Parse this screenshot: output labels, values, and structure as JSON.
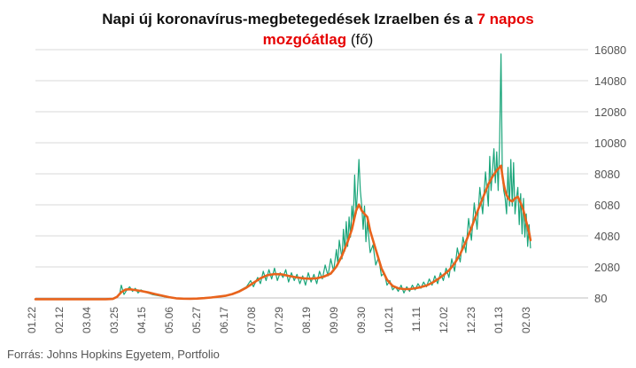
{
  "chart_data": {
    "type": "line",
    "title": {
      "part1": "Napi új koronavírus-megbetegedések Izraelben  és a ",
      "part2_red": "7 napos",
      "part3_red": "mozgóátlag",
      "part4": " (fő)"
    },
    "source": "Forrás: Johns Hopkins Egyetem, Portfolio",
    "y_ticks": [
      "80",
      "2080",
      "4080",
      "6080",
      "8080",
      "10080",
      "12080",
      "14080",
      "16080"
    ],
    "ylim": [
      80,
      16080
    ],
    "x_ticks": [
      "01.22",
      "02.12",
      "03.04",
      "03.25",
      "04.15",
      "05.06",
      "05.27",
      "06.17",
      "07.08",
      "07.29",
      "08.19",
      "09.09",
      "09.30",
      "10.21",
      "11.11",
      "12.02",
      "12.23",
      "01.13",
      "02.03"
    ],
    "x_range_days": [
      0,
      393
    ],
    "legend": "none",
    "grid": "horizontal",
    "series": [
      {
        "name": "Napi új megbetegedések",
        "color": "#1aa57a",
        "points": [
          [
            0,
            0
          ],
          [
            10,
            0
          ],
          [
            20,
            0
          ],
          [
            30,
            0
          ],
          [
            40,
            0
          ],
          [
            50,
            0
          ],
          [
            55,
            30
          ],
          [
            58,
            120
          ],
          [
            60,
            400
          ],
          [
            61,
            900
          ],
          [
            63,
            300
          ],
          [
            65,
            600
          ],
          [
            67,
            800
          ],
          [
            69,
            500
          ],
          [
            71,
            700
          ],
          [
            73,
            400
          ],
          [
            75,
            600
          ],
          [
            77,
            500
          ],
          [
            80,
            400
          ],
          [
            83,
            300
          ],
          [
            86,
            250
          ],
          [
            89,
            200
          ],
          [
            92,
            150
          ],
          [
            95,
            100
          ],
          [
            100,
            50
          ],
          [
            105,
            30
          ],
          [
            110,
            20
          ],
          [
            115,
            40
          ],
          [
            120,
            60
          ],
          [
            125,
            100
          ],
          [
            130,
            150
          ],
          [
            135,
            200
          ],
          [
            138,
            300
          ],
          [
            142,
            400
          ],
          [
            146,
            600
          ],
          [
            150,
            800
          ],
          [
            153,
            1200
          ],
          [
            155,
            800
          ],
          [
            158,
            1400
          ],
          [
            160,
            1000
          ],
          [
            162,
            1800
          ],
          [
            164,
            1200
          ],
          [
            166,
            1900
          ],
          [
            168,
            1300
          ],
          [
            170,
            2000
          ],
          [
            172,
            1200
          ],
          [
            174,
            1700
          ],
          [
            176,
            1400
          ],
          [
            178,
            1900
          ],
          [
            180,
            1100
          ],
          [
            182,
            1700
          ],
          [
            184,
            1200
          ],
          [
            186,
            1600
          ],
          [
            188,
            1000
          ],
          [
            190,
            1500
          ],
          [
            192,
            900
          ],
          [
            194,
            1700
          ],
          [
            196,
            1100
          ],
          [
            198,
            1600
          ],
          [
            200,
            1000
          ],
          [
            202,
            1800
          ],
          [
            204,
            1300
          ],
          [
            206,
            2200
          ],
          [
            208,
            1500
          ],
          [
            210,
            2600
          ],
          [
            212,
            1800
          ],
          [
            214,
            3200
          ],
          [
            215,
            2200
          ],
          [
            216,
            3800
          ],
          [
            218,
            2600
          ],
          [
            219,
            4500
          ],
          [
            220,
            3100
          ],
          [
            221,
            5000
          ],
          [
            222,
            3400
          ],
          [
            223,
            5300
          ],
          [
            224,
            4000
          ],
          [
            225,
            6000
          ],
          [
            226,
            5000
          ],
          [
            227,
            8000
          ],
          [
            228,
            5500
          ],
          [
            229,
            7000
          ],
          [
            230,
            9000
          ],
          [
            231,
            7000
          ],
          [
            232,
            6000
          ],
          [
            233,
            4500
          ],
          [
            234,
            6000
          ],
          [
            235,
            3700
          ],
          [
            236,
            5000
          ],
          [
            238,
            3000
          ],
          [
            240,
            3500
          ],
          [
            242,
            2200
          ],
          [
            244,
            2700
          ],
          [
            246,
            1500
          ],
          [
            248,
            1700
          ],
          [
            250,
            900
          ],
          [
            252,
            1200
          ],
          [
            254,
            600
          ],
          [
            256,
            800
          ],
          [
            258,
            500
          ],
          [
            260,
            900
          ],
          [
            262,
            400
          ],
          [
            264,
            800
          ],
          [
            266,
            500
          ],
          [
            268,
            900
          ],
          [
            270,
            600
          ],
          [
            272,
            1000
          ],
          [
            274,
            700
          ],
          [
            276,
            1100
          ],
          [
            278,
            800
          ],
          [
            280,
            1300
          ],
          [
            282,
            900
          ],
          [
            284,
            1500
          ],
          [
            286,
            1000
          ],
          [
            288,
            1700
          ],
          [
            290,
            1200
          ],
          [
            292,
            2000
          ],
          [
            294,
            1400
          ],
          [
            296,
            2600
          ],
          [
            298,
            1800
          ],
          [
            300,
            3300
          ],
          [
            302,
            2400
          ],
          [
            304,
            4000
          ],
          [
            306,
            3000
          ],
          [
            308,
            5200
          ],
          [
            310,
            3800
          ],
          [
            312,
            6200
          ],
          [
            314,
            4500
          ],
          [
            316,
            7200
          ],
          [
            318,
            5500
          ],
          [
            320,
            8200
          ],
          [
            322,
            6000
          ],
          [
            323,
            9200
          ],
          [
            324,
            7000
          ],
          [
            326,
            9700
          ],
          [
            327,
            7500
          ],
          [
            328,
            9500
          ],
          [
            329,
            7000
          ],
          [
            330,
            10000
          ],
          [
            331,
            15800
          ],
          [
            332,
            8000
          ],
          [
            333,
            7000
          ],
          [
            334,
            6500
          ],
          [
            335,
            5500
          ],
          [
            336,
            8500
          ],
          [
            337,
            6000
          ],
          [
            338,
            9000
          ],
          [
            339,
            6000
          ],
          [
            340,
            8800
          ],
          [
            341,
            5500
          ],
          [
            342,
            6500
          ],
          [
            343,
            7200
          ],
          [
            344,
            4800
          ],
          [
            345,
            6800
          ],
          [
            346,
            4200
          ],
          [
            347,
            6500
          ],
          [
            348,
            4000
          ],
          [
            349,
            5500
          ],
          [
            350,
            3400
          ],
          [
            351,
            4800
          ],
          [
            352,
            3300
          ]
        ]
      },
      {
        "name": "7 napos mozgóátlag",
        "color": "#e8631c",
        "points": [
          [
            0,
            0
          ],
          [
            50,
            0
          ],
          [
            55,
            20
          ],
          [
            58,
            150
          ],
          [
            61,
            450
          ],
          [
            64,
            620
          ],
          [
            67,
            640
          ],
          [
            70,
            600
          ],
          [
            75,
            530
          ],
          [
            80,
            440
          ],
          [
            85,
            330
          ],
          [
            90,
            230
          ],
          [
            95,
            130
          ],
          [
            100,
            60
          ],
          [
            105,
            35
          ],
          [
            110,
            30
          ],
          [
            115,
            40
          ],
          [
            120,
            70
          ],
          [
            125,
            110
          ],
          [
            130,
            160
          ],
          [
            135,
            220
          ],
          [
            140,
            330
          ],
          [
            145,
            500
          ],
          [
            150,
            750
          ],
          [
            155,
            1050
          ],
          [
            160,
            1350
          ],
          [
            165,
            1550
          ],
          [
            170,
            1620
          ],
          [
            175,
            1600
          ],
          [
            180,
            1500
          ],
          [
            185,
            1420
          ],
          [
            190,
            1350
          ],
          [
            195,
            1320
          ],
          [
            200,
            1350
          ],
          [
            205,
            1450
          ],
          [
            210,
            1650
          ],
          [
            214,
            2100
          ],
          [
            218,
            2800
          ],
          [
            222,
            3700
          ],
          [
            225,
            4500
          ],
          [
            228,
            5700
          ],
          [
            230,
            6100
          ],
          [
            232,
            5700
          ],
          [
            234,
            5500
          ],
          [
            236,
            5300
          ],
          [
            238,
            4400
          ],
          [
            242,
            3200
          ],
          [
            246,
            2000
          ],
          [
            250,
            1250
          ],
          [
            254,
            850
          ],
          [
            258,
            700
          ],
          [
            262,
            650
          ],
          [
            266,
            650
          ],
          [
            270,
            700
          ],
          [
            274,
            780
          ],
          [
            278,
            880
          ],
          [
            282,
            1050
          ],
          [
            286,
            1280
          ],
          [
            290,
            1550
          ],
          [
            294,
            1850
          ],
          [
            298,
            2300
          ],
          [
            302,
            2900
          ],
          [
            306,
            3700
          ],
          [
            310,
            4600
          ],
          [
            314,
            5600
          ],
          [
            318,
            6500
          ],
          [
            322,
            7400
          ],
          [
            325,
            7900
          ],
          [
            328,
            8300
          ],
          [
            330,
            8500
          ],
          [
            331,
            8600
          ],
          [
            332,
            8000
          ],
          [
            333,
            7400
          ],
          [
            334,
            7000
          ],
          [
            335,
            6700
          ],
          [
            337,
            6400
          ],
          [
            339,
            6300
          ],
          [
            341,
            6500
          ],
          [
            343,
            6600
          ],
          [
            345,
            6200
          ],
          [
            347,
            5700
          ],
          [
            349,
            5000
          ],
          [
            351,
            4300
          ],
          [
            352,
            3800
          ]
        ]
      }
    ]
  }
}
